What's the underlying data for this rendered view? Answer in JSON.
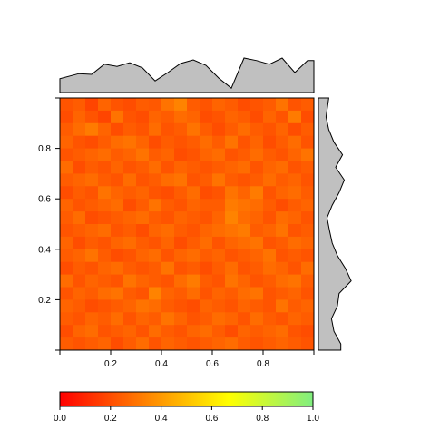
{
  "chart_data": {
    "type": "heatmap",
    "title": "",
    "xlabel": "",
    "ylabel": "",
    "xlim": [
      0,
      1
    ],
    "ylim": [
      0,
      1
    ],
    "grid": false,
    "rows": 20,
    "cols": 20,
    "x_ticks": [
      "0.2",
      "0.4",
      "0.6",
      "0.8"
    ],
    "x_tick_values": [
      0.2,
      0.4,
      0.6,
      0.8
    ],
    "y_ticks": [
      "0.2",
      "0.4",
      "0.6",
      "0.8"
    ],
    "y_tick_values": [
      0.2,
      0.4,
      0.6,
      0.8
    ],
    "colorbar": {
      "range": [
        0,
        1
      ],
      "ticks": [
        "0.0",
        "0.2",
        "0.4",
        "0.6",
        "0.8",
        "1.0"
      ],
      "tick_values": [
        0.0,
        0.2,
        0.4,
        0.6,
        0.8,
        1.0
      ],
      "colors": [
        "#ff0000",
        "#ff8000",
        "#ffff00",
        "#80ee80"
      ]
    },
    "value_range_shown": [
      0.12,
      0.38
    ],
    "top_marginal": [
      0.38,
      0.52,
      0.5,
      0.78,
      0.72,
      0.82,
      0.68,
      0.32,
      0.55,
      0.8,
      0.9,
      0.75,
      0.4,
      0.12,
      0.95,
      0.88,
      0.78,
      0.95,
      0.55,
      0.88
    ],
    "right_marginal": [
      0.3,
      0.22,
      0.3,
      0.45,
      0.7,
      0.5,
      0.75,
      0.6,
      0.4,
      0.25,
      0.32,
      0.4,
      0.55,
      0.78,
      0.95,
      0.6,
      0.55,
      0.38,
      0.45,
      0.65
    ],
    "cells": [
      [
        0.22,
        0.24,
        0.18,
        0.26,
        0.22,
        0.2,
        0.24,
        0.23,
        0.3,
        0.34,
        0.24,
        0.22,
        0.26,
        0.24,
        0.2,
        0.22,
        0.24,
        0.3,
        0.22,
        0.24
      ],
      [
        0.2,
        0.26,
        0.22,
        0.18,
        0.3,
        0.22,
        0.2,
        0.26,
        0.24,
        0.28,
        0.26,
        0.2,
        0.22,
        0.26,
        0.24,
        0.2,
        0.26,
        0.22,
        0.32,
        0.2
      ],
      [
        0.24,
        0.28,
        0.32,
        0.26,
        0.2,
        0.24,
        0.22,
        0.28,
        0.22,
        0.24,
        0.3,
        0.24,
        0.2,
        0.24,
        0.28,
        0.24,
        0.22,
        0.26,
        0.2,
        0.24
      ],
      [
        0.26,
        0.22,
        0.2,
        0.24,
        0.28,
        0.3,
        0.26,
        0.2,
        0.24,
        0.22,
        0.24,
        0.28,
        0.24,
        0.3,
        0.22,
        0.26,
        0.2,
        0.24,
        0.28,
        0.22
      ],
      [
        0.22,
        0.24,
        0.26,
        0.28,
        0.24,
        0.26,
        0.3,
        0.24,
        0.26,
        0.2,
        0.22,
        0.26,
        0.28,
        0.22,
        0.24,
        0.28,
        0.24,
        0.22,
        0.26,
        0.3
      ],
      [
        0.28,
        0.2,
        0.24,
        0.22,
        0.26,
        0.22,
        0.24,
        0.28,
        0.22,
        0.26,
        0.24,
        0.22,
        0.24,
        0.26,
        0.28,
        0.22,
        0.26,
        0.28,
        0.22,
        0.24
      ],
      [
        0.24,
        0.26,
        0.28,
        0.24,
        0.22,
        0.28,
        0.22,
        0.24,
        0.28,
        0.3,
        0.22,
        0.24,
        0.3,
        0.24,
        0.22,
        0.24,
        0.28,
        0.24,
        0.26,
        0.22
      ],
      [
        0.2,
        0.24,
        0.22,
        0.3,
        0.26,
        0.24,
        0.26,
        0.22,
        0.2,
        0.24,
        0.28,
        0.2,
        0.22,
        0.3,
        0.26,
        0.32,
        0.22,
        0.26,
        0.28,
        0.24
      ],
      [
        0.26,
        0.22,
        0.24,
        0.26,
        0.28,
        0.2,
        0.24,
        0.3,
        0.24,
        0.22,
        0.26,
        0.24,
        0.24,
        0.32,
        0.3,
        0.28,
        0.24,
        0.2,
        0.24,
        0.26
      ],
      [
        0.24,
        0.28,
        0.2,
        0.22,
        0.24,
        0.26,
        0.28,
        0.24,
        0.22,
        0.26,
        0.24,
        0.22,
        0.26,
        0.34,
        0.28,
        0.26,
        0.22,
        0.28,
        0.26,
        0.22
      ],
      [
        0.22,
        0.24,
        0.26,
        0.28,
        0.22,
        0.24,
        0.2,
        0.26,
        0.28,
        0.24,
        0.22,
        0.26,
        0.28,
        0.3,
        0.32,
        0.24,
        0.26,
        0.3,
        0.22,
        0.24
      ],
      [
        0.26,
        0.2,
        0.24,
        0.22,
        0.26,
        0.28,
        0.24,
        0.22,
        0.26,
        0.2,
        0.24,
        0.28,
        0.22,
        0.26,
        0.28,
        0.3,
        0.22,
        0.24,
        0.28,
        0.26
      ],
      [
        0.24,
        0.26,
        0.3,
        0.24,
        0.2,
        0.22,
        0.26,
        0.28,
        0.22,
        0.26,
        0.28,
        0.24,
        0.26,
        0.22,
        0.24,
        0.26,
        0.3,
        0.22,
        0.24,
        0.22
      ],
      [
        0.2,
        0.24,
        0.22,
        0.26,
        0.28,
        0.24,
        0.22,
        0.24,
        0.3,
        0.22,
        0.24,
        0.2,
        0.24,
        0.28,
        0.22,
        0.24,
        0.28,
        0.26,
        0.22,
        0.28
      ],
      [
        0.28,
        0.22,
        0.26,
        0.24,
        0.22,
        0.3,
        0.26,
        0.24,
        0.22,
        0.28,
        0.32,
        0.24,
        0.22,
        0.3,
        0.26,
        0.22,
        0.24,
        0.28,
        0.3,
        0.24
      ],
      [
        0.22,
        0.26,
        0.24,
        0.28,
        0.3,
        0.24,
        0.22,
        0.34,
        0.26,
        0.24,
        0.28,
        0.22,
        0.26,
        0.24,
        0.28,
        0.3,
        0.22,
        0.24,
        0.26,
        0.22
      ],
      [
        0.26,
        0.24,
        0.2,
        0.22,
        0.24,
        0.26,
        0.3,
        0.28,
        0.24,
        0.22,
        0.2,
        0.26,
        0.24,
        0.22,
        0.26,
        0.24,
        0.22,
        0.3,
        0.24,
        0.26
      ],
      [
        0.24,
        0.22,
        0.26,
        0.24,
        0.28,
        0.22,
        0.26,
        0.24,
        0.3,
        0.26,
        0.22,
        0.24,
        0.28,
        0.26,
        0.22,
        0.28,
        0.24,
        0.22,
        0.26,
        0.24
      ],
      [
        0.2,
        0.26,
        0.28,
        0.22,
        0.24,
        0.26,
        0.22,
        0.28,
        0.24,
        0.22,
        0.26,
        0.28,
        0.24,
        0.2,
        0.26,
        0.24,
        0.26,
        0.28,
        0.22,
        0.2
      ],
      [
        0.24,
        0.22,
        0.24,
        0.26,
        0.2,
        0.24,
        0.28,
        0.22,
        0.26,
        0.24,
        0.22,
        0.24,
        0.26,
        0.28,
        0.24,
        0.22,
        0.24,
        0.26,
        0.24,
        0.22
      ]
    ]
  }
}
